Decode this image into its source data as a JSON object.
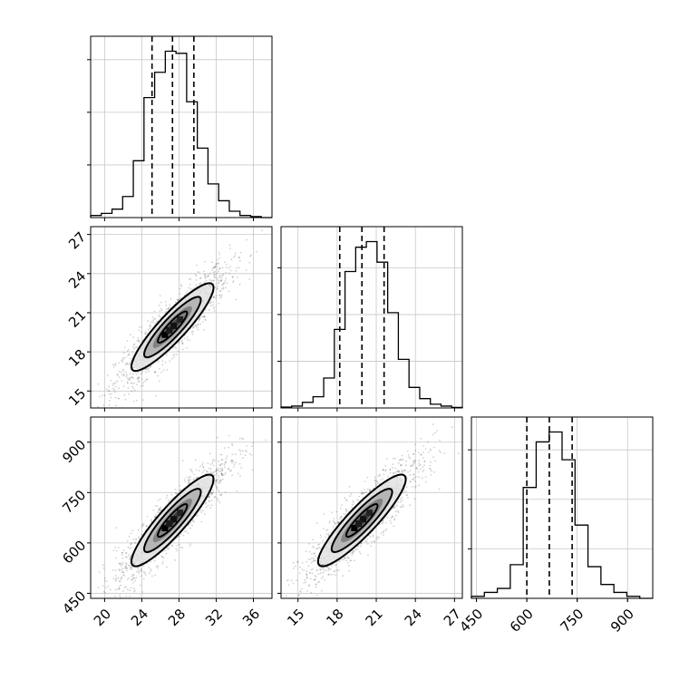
{
  "chart_data": {
    "type": "corner",
    "grid": true,
    "parameters": [
      {
        "ticks": [
          20,
          24,
          28,
          32,
          36
        ],
        "range": [
          18.5,
          38
        ],
        "hist_bins": [
          1,
          2,
          4,
          10,
          27,
          57,
          69,
          79,
          78,
          55,
          33,
          16,
          8,
          3,
          1,
          0.5,
          0
        ],
        "quantiles": [
          25.1,
          27.3,
          29.6
        ]
      },
      {
        "ticks": [
          15,
          18,
          21,
          24,
          27
        ],
        "range": [
          13.7,
          27.6
        ],
        "hist_bins": [
          0.5,
          1,
          3,
          6,
          16,
          42,
          73,
          86,
          89,
          78,
          51,
          26,
          11,
          5,
          2,
          1,
          0.3
        ],
        "quantiles": [
          18.2,
          19.9,
          21.6
        ]
      },
      {
        "ticks": [
          450,
          600,
          750,
          900
        ],
        "range": [
          435,
          975
        ],
        "hist_bins": [
          1,
          3,
          5,
          17,
          56,
          79,
          84,
          70,
          37,
          16,
          7,
          3,
          1,
          0
        ],
        "quantiles": [
          600,
          667,
          735
        ]
      }
    ],
    "pairs": [
      {
        "x_param": 0,
        "y_param": 1,
        "center": [
          27.3,
          19.9
        ],
        "sd": [
          2.1,
          1.6
        ],
        "rho": 0.9
      },
      {
        "x_param": 0,
        "y_param": 2,
        "center": [
          27.3,
          667
        ],
        "sd": [
          2.1,
          65
        ],
        "rho": 0.9
      },
      {
        "x_param": 1,
        "y_param": 2,
        "center": [
          19.9,
          667
        ],
        "sd": [
          1.6,
          65
        ],
        "rho": 0.9
      }
    ]
  }
}
